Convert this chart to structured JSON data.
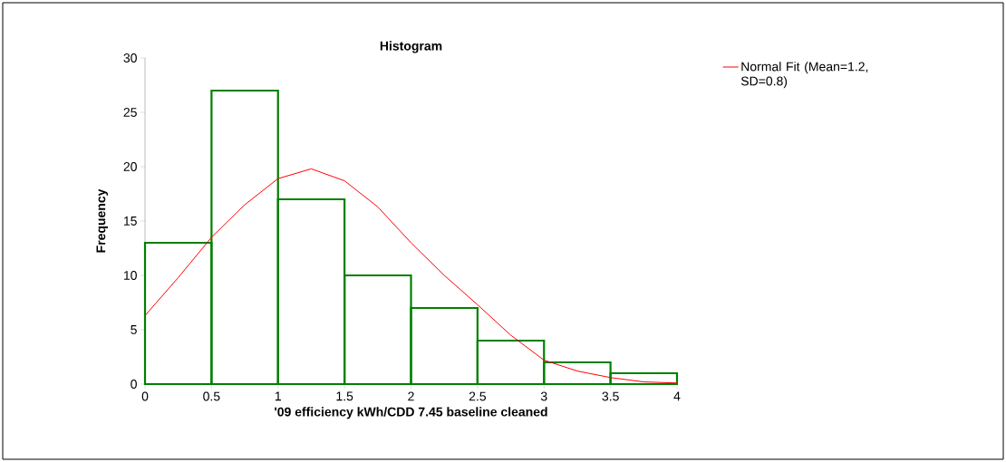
{
  "chart_data": {
    "type": "histogram",
    "title": "Histogram",
    "xlabel": "'09 efficiency kWh/CDD 7.45 baseline cleaned",
    "ylabel": "Frequency",
    "bins": [
      0,
      0.5,
      1,
      1.5,
      2,
      2.5,
      3,
      3.5,
      4
    ],
    "values": [
      13,
      27,
      17,
      10,
      7,
      4,
      2,
      1
    ],
    "color": "#008000",
    "series": [
      {
        "name": "Normal Fit (Mean=1.2, SD=0.8)",
        "type": "line",
        "color": "#ff0000",
        "x": [
          0,
          0.25,
          0.5,
          0.75,
          1,
          1.25,
          1.5,
          1.75,
          2,
          2.25,
          2.5,
          2.75,
          3,
          3.25,
          3.5,
          3.75,
          4
        ],
        "values": [
          6.3,
          9.8,
          13.5,
          16.5,
          18.9,
          19.8,
          18.7,
          16.3,
          13,
          10,
          7.3,
          4.5,
          2.2,
          1.2,
          0.6,
          0.2,
          0.1
        ]
      }
    ],
    "xlim": [
      0,
      4
    ],
    "ylim": [
      0,
      30
    ],
    "xticks": [
      0,
      0.5,
      1,
      1.5,
      2,
      2.5,
      3,
      3.5,
      4
    ],
    "yticks": [
      0,
      5,
      10,
      15,
      20,
      25,
      30
    ],
    "grid": false,
    "legend": "top right"
  }
}
